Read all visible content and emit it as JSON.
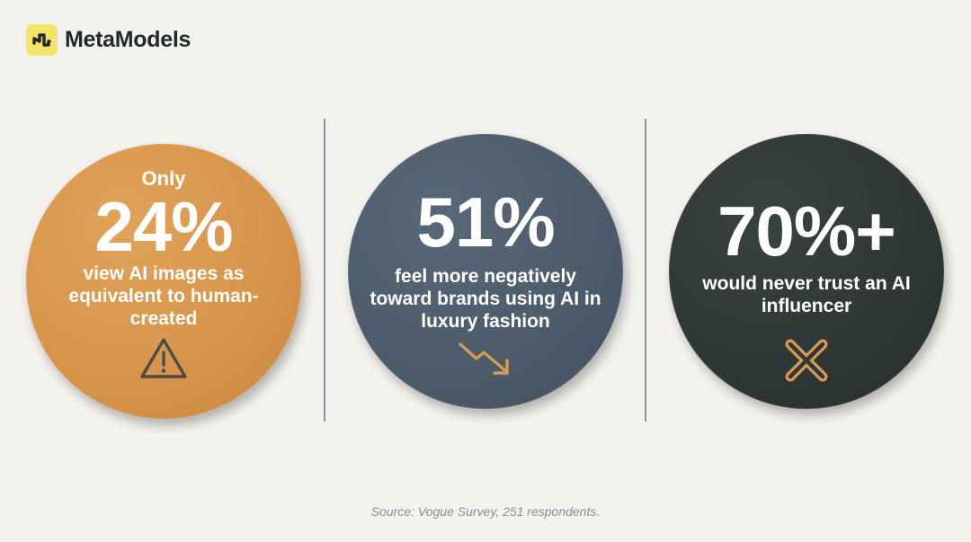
{
  "brand": {
    "name": "MetaModels"
  },
  "stats": [
    {
      "prefix": "Only",
      "value": "24%",
      "description": "view AI images as equivalent to human-created",
      "icon": "warning-triangle-icon",
      "color": "#d8954a",
      "icon_color": "#4a4c4c"
    },
    {
      "prefix": "",
      "value": "51%",
      "description": "feel more negatively toward brands using AI in luxury fashion",
      "icon": "trend-down-arrow-icon",
      "color": "#4d5c6b",
      "icon_color": "#d79a57"
    },
    {
      "prefix": "",
      "value": "70%+",
      "description": "would never trust an AI influencer",
      "icon": "cross-x-icon",
      "color": "#2f3837",
      "icon_color": "#d79a57"
    }
  ],
  "footer": {
    "source": "Source: Vogue Survey, 251 respondents."
  }
}
